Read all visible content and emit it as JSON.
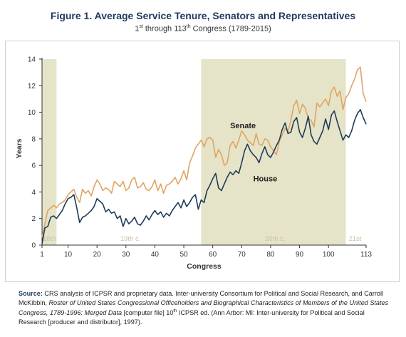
{
  "header": {
    "title": "Figure 1. Average Service Tenure, Senators and Representatives",
    "subtitle_parts": [
      "1",
      "st",
      " through 113",
      "th",
      " Congress (1789-2015)"
    ]
  },
  "source": {
    "label": "Source:",
    "text_1": " CRS analysis of ICPSR and proprietary data. Inter-university Consortium for Political and Social Research, and Carroll McKibbin, ",
    "text_italic": "Roster of United States Congressional Officeholders and Biographical Characteristics of Members of the United States Congress, 1789-1996: Merged Data",
    "text_2": " [computer file] 10",
    "text_sup": "th",
    "text_3": " ICPSR ed. (Ann Arbor: MI: Inter-university for Political and Social Research [producer and distributor], 1997)."
  },
  "chart_data": {
    "type": "line",
    "title": "Figure 1. Average Service Tenure, Senators and Representatives",
    "subtitle": "1st through 113th Congress (1789-2015)",
    "xlabel": "Congress",
    "ylabel": "Years",
    "xlim": [
      1,
      113
    ],
    "ylim": [
      0,
      14
    ],
    "xticks": [
      1,
      10,
      20,
      30,
      40,
      50,
      60,
      70,
      80,
      90,
      100,
      113
    ],
    "yticks": [
      0,
      2,
      4,
      6,
      8,
      10,
      12,
      14
    ],
    "grid": false,
    "legend": "inline labels",
    "colors": {
      "senate": "#e0a463",
      "house": "#1f3b5a",
      "band": "#e6e4c8"
    },
    "century_bands": [
      {
        "label": "18th",
        "start": 1,
        "end": 6,
        "shaded": true
      },
      {
        "label": "19th c.",
        "start": 6,
        "end": 56,
        "shaded": false
      },
      {
        "label": "20th c.",
        "start": 56,
        "end": 106,
        "shaded": true
      },
      {
        "label": "21st",
        "start": 106,
        "end": 113,
        "shaded": false
      }
    ],
    "series": [
      {
        "name": "Senate",
        "label_at": [
          66,
          8.8
        ],
        "points": [
          [
            1,
            0.6
          ],
          [
            2,
            1.6
          ],
          [
            3,
            2.6
          ],
          [
            4,
            2.8
          ],
          [
            5,
            3.0
          ],
          [
            6,
            2.8
          ],
          [
            7,
            3.1
          ],
          [
            8,
            3.2
          ],
          [
            9,
            3.4
          ],
          [
            10,
            3.8
          ],
          [
            11,
            4.0
          ],
          [
            12,
            4.2
          ],
          [
            13,
            3.6
          ],
          [
            14,
            3.2
          ],
          [
            15,
            4.2
          ],
          [
            16,
            3.9
          ],
          [
            17,
            4.1
          ],
          [
            18,
            3.7
          ],
          [
            19,
            4.4
          ],
          [
            20,
            4.9
          ],
          [
            21,
            4.6
          ],
          [
            22,
            4.1
          ],
          [
            23,
            4.3
          ],
          [
            24,
            4.2
          ],
          [
            25,
            3.9
          ],
          [
            26,
            4.8
          ],
          [
            27,
            4.6
          ],
          [
            28,
            4.4
          ],
          [
            29,
            4.8
          ],
          [
            30,
            4.1
          ],
          [
            31,
            4.3
          ],
          [
            32,
            4.9
          ],
          [
            33,
            5.1
          ],
          [
            34,
            4.3
          ],
          [
            35,
            4.4
          ],
          [
            36,
            4.7
          ],
          [
            37,
            4.2
          ],
          [
            38,
            4.1
          ],
          [
            39,
            4.4
          ],
          [
            40,
            4.9
          ],
          [
            41,
            4.1
          ],
          [
            42,
            4.6
          ],
          [
            43,
            3.9
          ],
          [
            44,
            4.5
          ],
          [
            45,
            4.6
          ],
          [
            46,
            4.8
          ],
          [
            47,
            5.1
          ],
          [
            48,
            4.6
          ],
          [
            49,
            5.0
          ],
          [
            50,
            5.6
          ],
          [
            51,
            4.9
          ],
          [
            52,
            6.2
          ],
          [
            53,
            6.7
          ],
          [
            54,
            7.3
          ],
          [
            55,
            7.6
          ],
          [
            56,
            7.9
          ],
          [
            57,
            7.4
          ],
          [
            58,
            8.0
          ],
          [
            59,
            8.1
          ],
          [
            60,
            7.9
          ],
          [
            61,
            6.6
          ],
          [
            62,
            7.2
          ],
          [
            63,
            6.8
          ],
          [
            64,
            6.0
          ],
          [
            65,
            6.2
          ],
          [
            66,
            7.5
          ],
          [
            67,
            7.8
          ],
          [
            68,
            7.3
          ],
          [
            69,
            7.9
          ],
          [
            70,
            8.6
          ],
          [
            71,
            8.3
          ],
          [
            72,
            7.9
          ],
          [
            73,
            7.7
          ],
          [
            74,
            7.5
          ],
          [
            75,
            8.4
          ],
          [
            76,
            7.6
          ],
          [
            77,
            7.5
          ],
          [
            78,
            8.0
          ],
          [
            79,
            7.9
          ],
          [
            80,
            7.4
          ],
          [
            81,
            7.1
          ],
          [
            82,
            6.8
          ],
          [
            83,
            7.8
          ],
          [
            84,
            8.3
          ],
          [
            85,
            8.8
          ],
          [
            86,
            8.5
          ],
          [
            87,
            9.4
          ],
          [
            88,
            10.5
          ],
          [
            89,
            10.9
          ],
          [
            90,
            9.9
          ],
          [
            91,
            10.6
          ],
          [
            92,
            10.3
          ],
          [
            93,
            9.5
          ],
          [
            94,
            9.4
          ],
          [
            95,
            8.9
          ],
          [
            96,
            10.7
          ],
          [
            97,
            10.4
          ],
          [
            98,
            10.7
          ],
          [
            99,
            11.0
          ],
          [
            100,
            10.5
          ],
          [
            101,
            11.6
          ],
          [
            102,
            11.9
          ],
          [
            103,
            11.2
          ],
          [
            104,
            11.6
          ],
          [
            105,
            10.2
          ],
          [
            106,
            11.1
          ],
          [
            107,
            11.4
          ],
          [
            108,
            12.0
          ],
          [
            109,
            12.5
          ],
          [
            110,
            13.2
          ],
          [
            111,
            13.4
          ],
          [
            112,
            11.4
          ],
          [
            113,
            10.8
          ]
        ]
      },
      {
        "name": "House",
        "label_at": [
          74,
          4.8
        ],
        "points": [
          [
            1,
            0.1
          ],
          [
            2,
            1.3
          ],
          [
            3,
            1.4
          ],
          [
            4,
            2.1
          ],
          [
            5,
            2.2
          ],
          [
            6,
            2.0
          ],
          [
            7,
            2.3
          ],
          [
            8,
            2.6
          ],
          [
            9,
            3.1
          ],
          [
            10,
            3.5
          ],
          [
            11,
            3.6
          ],
          [
            12,
            3.8
          ],
          [
            13,
            2.8
          ],
          [
            14,
            1.7
          ],
          [
            15,
            2.1
          ],
          [
            16,
            2.2
          ],
          [
            17,
            2.4
          ],
          [
            18,
            2.6
          ],
          [
            19,
            2.9
          ],
          [
            20,
            3.5
          ],
          [
            21,
            3.3
          ],
          [
            22,
            3.1
          ],
          [
            23,
            2.5
          ],
          [
            24,
            2.7
          ],
          [
            25,
            2.4
          ],
          [
            26,
            2.5
          ],
          [
            27,
            2.0
          ],
          [
            28,
            2.2
          ],
          [
            29,
            1.4
          ],
          [
            30,
            2.0
          ],
          [
            31,
            1.6
          ],
          [
            32,
            1.8
          ],
          [
            33,
            2.1
          ],
          [
            34,
            1.6
          ],
          [
            35,
            1.5
          ],
          [
            36,
            1.8
          ],
          [
            37,
            2.2
          ],
          [
            38,
            1.9
          ],
          [
            39,
            2.3
          ],
          [
            40,
            2.6
          ],
          [
            41,
            2.3
          ],
          [
            42,
            2.5
          ],
          [
            43,
            2.1
          ],
          [
            44,
            2.4
          ],
          [
            45,
            2.2
          ],
          [
            46,
            2.6
          ],
          [
            47,
            2.9
          ],
          [
            48,
            3.2
          ],
          [
            49,
            2.8
          ],
          [
            50,
            3.4
          ],
          [
            51,
            2.9
          ],
          [
            52,
            3.2
          ],
          [
            53,
            3.6
          ],
          [
            54,
            3.8
          ],
          [
            55,
            2.7
          ],
          [
            56,
            3.4
          ],
          [
            57,
            3.2
          ],
          [
            58,
            4.1
          ],
          [
            59,
            4.5
          ],
          [
            60,
            5.0
          ],
          [
            61,
            5.4
          ],
          [
            62,
            4.3
          ],
          [
            63,
            4.1
          ],
          [
            64,
            4.6
          ],
          [
            65,
            5.1
          ],
          [
            66,
            5.5
          ],
          [
            67,
            5.3
          ],
          [
            68,
            5.6
          ],
          [
            69,
            5.4
          ],
          [
            70,
            6.2
          ],
          [
            71,
            7.1
          ],
          [
            72,
            7.6
          ],
          [
            73,
            7.1
          ],
          [
            74,
            6.8
          ],
          [
            75,
            6.6
          ],
          [
            76,
            6.2
          ],
          [
            77,
            6.9
          ],
          [
            78,
            7.4
          ],
          [
            79,
            6.8
          ],
          [
            80,
            6.6
          ],
          [
            81,
            7.0
          ],
          [
            82,
            7.5
          ],
          [
            83,
            7.9
          ],
          [
            84,
            8.7
          ],
          [
            85,
            9.2
          ],
          [
            86,
            8.4
          ],
          [
            87,
            8.5
          ],
          [
            88,
            9.3
          ],
          [
            89,
            9.6
          ],
          [
            90,
            8.5
          ],
          [
            91,
            8.1
          ],
          [
            92,
            8.8
          ],
          [
            93,
            9.7
          ],
          [
            94,
            8.3
          ],
          [
            95,
            7.8
          ],
          [
            96,
            7.6
          ],
          [
            97,
            8.1
          ],
          [
            98,
            8.6
          ],
          [
            99,
            9.5
          ],
          [
            100,
            8.7
          ],
          [
            101,
            9.8
          ],
          [
            102,
            10.1
          ],
          [
            103,
            9.3
          ],
          [
            104,
            8.6
          ],
          [
            105,
            7.9
          ],
          [
            106,
            8.3
          ],
          [
            107,
            8.1
          ],
          [
            108,
            8.6
          ],
          [
            109,
            9.4
          ],
          [
            110,
            9.9
          ],
          [
            111,
            10.2
          ],
          [
            112,
            9.6
          ],
          [
            113,
            9.1
          ]
        ]
      }
    ]
  }
}
